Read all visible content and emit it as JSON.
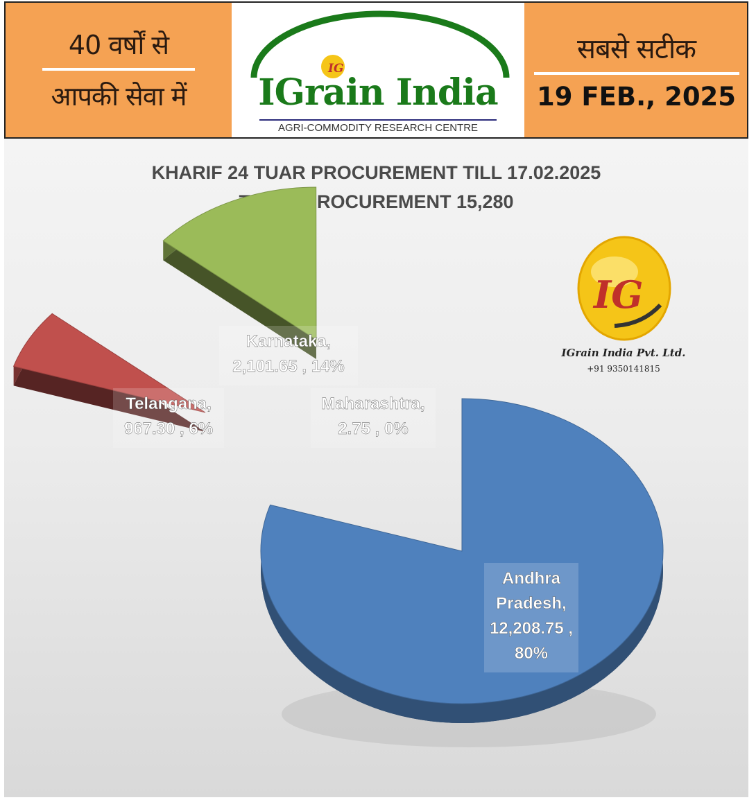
{
  "header": {
    "left_line1": "40 वर्षों से",
    "left_line2": "आपकी सेवा में",
    "brand_name": "IGrain India",
    "brand_tagline": "AGRI-COMMODITY RESEARCH CENTRE",
    "right_line1": "सबसे सटीक",
    "date": "19 FEB., 2025",
    "logo_letters": "IG"
  },
  "side_logo": {
    "letters": "IG",
    "company": "IGrain India Pvt. Ltd.",
    "phone": "+91 9350141815"
  },
  "colors": {
    "header_orange": "#f5a253",
    "brand_green": "#1a7a1a",
    "andhra_blue": "#4f81bd",
    "telangana_red": "#c0504d",
    "karnataka_green": "#9bbb59",
    "logo_yellow": "#f5c518"
  },
  "chart_data": {
    "type": "pie",
    "title": "KHARIF 24 TUAR PROCUREMENT TILL 17.02.2025",
    "subtitle": "TOTAL PROCUREMENT 15,280",
    "slices": [
      {
        "name": "Andhra Pradesh",
        "value": 12208.75,
        "percent": 80,
        "label": [
          "Andhra",
          "Pradesh,",
          "12,208.75 ,",
          "80%"
        ],
        "color": "#4f81bd"
      },
      {
        "name": "Telangana",
        "value": 967.3,
        "percent": 6,
        "label": [
          "Telangana,",
          "967.30 , 6%"
        ],
        "color": "#c0504d"
      },
      {
        "name": "Karnataka",
        "value": 2101.65,
        "percent": 14,
        "label": [
          "Karnataka,",
          "2,101.65 , 14%"
        ],
        "color": "#9bbb59"
      },
      {
        "name": "Maharashtra",
        "value": 2.75,
        "percent": 0,
        "label": [
          "Maharashtra,",
          "2.75 , 0%"
        ],
        "color": "#8064a2"
      }
    ],
    "exploded": true,
    "style": "3d"
  }
}
